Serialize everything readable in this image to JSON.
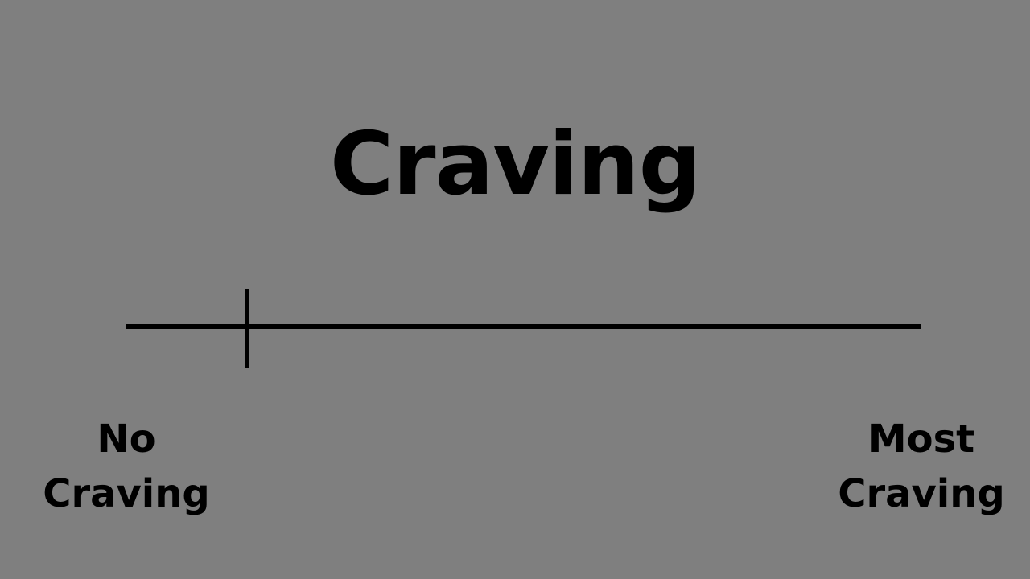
{
  "title": "Craving",
  "scale": {
    "marker_position": 0.153,
    "left_anchor": {
      "line1": "No",
      "line2": "Craving"
    },
    "right_anchor": {
      "line1": "Most",
      "line2": "Craving"
    }
  },
  "colors": {
    "background": "#7f7f7f",
    "foreground": "#000000"
  }
}
